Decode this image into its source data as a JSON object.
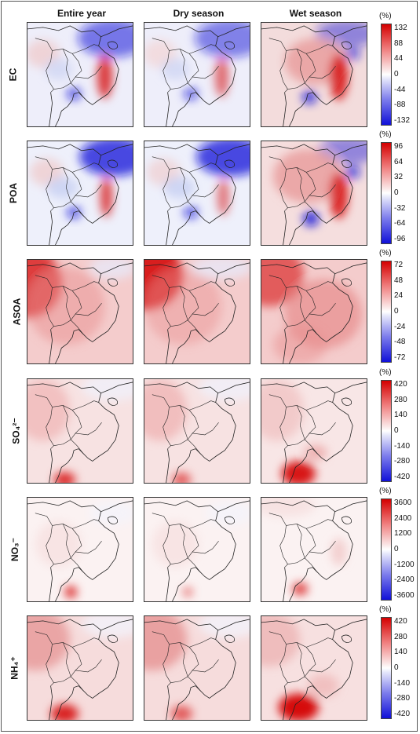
{
  "columns": [
    "Entire year",
    "Dry season",
    "Wet season"
  ],
  "unit": "(%)",
  "rows": [
    {
      "label": "EC",
      "ticks": [
        "132",
        "88",
        "44",
        "0",
        "-44",
        "-88",
        "-132"
      ]
    },
    {
      "label": "POA",
      "ticks": [
        "96",
        "64",
        "32",
        "0",
        "-32",
        "-64",
        "-96"
      ]
    },
    {
      "label": "ASOA",
      "ticks": [
        "72",
        "48",
        "24",
        "0",
        "-24",
        "-48",
        "-72"
      ]
    },
    {
      "label": "SO₄²⁻",
      "ticks": [
        "420",
        "280",
        "140",
        "0",
        "-140",
        "-280",
        "-420"
      ]
    },
    {
      "label": "NO₃⁻",
      "ticks": [
        "3600",
        "2400",
        "1200",
        "0",
        "-1200",
        "-2400",
        "-3600"
      ]
    },
    {
      "label": "NH₄⁺",
      "ticks": [
        "420",
        "280",
        "140",
        "0",
        "-140",
        "-280",
        "-420"
      ]
    }
  ],
  "colors": {
    "positive": "#d40000",
    "negative": "#1010d8",
    "neutral": "#ffffff"
  }
}
